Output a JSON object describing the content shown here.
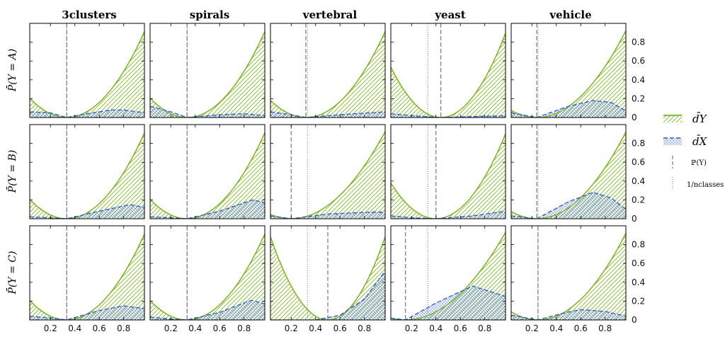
{
  "chart_data": {
    "type": "area",
    "columns": [
      "3clusters",
      "spirals",
      "vertebral",
      "yeast",
      "vehicle"
    ],
    "rows": [
      "P̄(Y = A)",
      "P̄(Y = B)",
      "P̄(Y = C)"
    ],
    "xlim": [
      0.03,
      0.97
    ],
    "x_ticks": [
      "0.2",
      "0.4",
      "0.6",
      "0.8"
    ],
    "ylim": [
      0,
      1.0
    ],
    "y_ticks": [
      "0",
      "0.2",
      "0.4",
      "0.6",
      "0.8"
    ],
    "legend": [
      {
        "label": "d̄Y",
        "style": "solid green line with diagonal hatch fill"
      },
      {
        "label": "d̄X",
        "style": "dashed blue line with dotted fill"
      },
      {
        "label": "ℙ(Y)",
        "style": "dashed gray vertical line"
      },
      {
        "label": "1/nclasses",
        "style": "dotted gray vertical line"
      }
    ],
    "colors": {
      "dY": "#7ab51d",
      "dX": "#2a56d6",
      "vline": "#777777"
    },
    "panels": [
      {
        "row": 0,
        "col": 0,
        "py": 0.333,
        "inv": 0.333,
        "dx_x": [
          0.03,
          0.2,
          0.333,
          0.5,
          0.7,
          0.8,
          0.97
        ],
        "dx_y": [
          0.06,
          0.05,
          0.0,
          0.04,
          0.08,
          0.08,
          0.05
        ]
      },
      {
        "row": 0,
        "col": 1,
        "py": 0.333,
        "inv": 0.333,
        "dx_x": [
          0.03,
          0.2,
          0.333,
          0.6,
          0.8,
          0.97
        ],
        "dx_y": [
          0.12,
          0.06,
          0.0,
          0.03,
          0.04,
          0.02
        ]
      },
      {
        "row": 0,
        "col": 2,
        "py": 0.32,
        "inv": 0.333,
        "dx_x": [
          0.03,
          0.2,
          0.32,
          0.6,
          0.97
        ],
        "dx_y": [
          0.06,
          0.03,
          0.0,
          0.03,
          0.06
        ]
      },
      {
        "row": 0,
        "col": 3,
        "py": 0.44,
        "inv": 0.333,
        "dx_x": [
          0.03,
          0.2,
          0.44,
          0.7,
          0.97
        ],
        "dx_y": [
          0.04,
          0.02,
          0.0,
          0.01,
          0.02
        ]
      },
      {
        "row": 0,
        "col": 4,
        "py": 0.24,
        "inv": 0.25,
        "dx_x": [
          0.03,
          0.24,
          0.5,
          0.7,
          0.85,
          0.97
        ],
        "dx_y": [
          0.05,
          0.0,
          0.12,
          0.18,
          0.16,
          0.07
        ]
      },
      {
        "row": 1,
        "col": 0,
        "py": 0.333,
        "inv": 0.333,
        "dx_x": [
          0.03,
          0.2,
          0.333,
          0.6,
          0.85,
          0.97
        ],
        "dx_y": [
          0.02,
          0.01,
          0.0,
          0.08,
          0.15,
          0.12
        ]
      },
      {
        "row": 1,
        "col": 1,
        "py": 0.333,
        "inv": 0.333,
        "dx_x": [
          0.03,
          0.2,
          0.333,
          0.6,
          0.87,
          0.97
        ],
        "dx_y": [
          0.02,
          0.01,
          0.0,
          0.08,
          0.2,
          0.17
        ]
      },
      {
        "row": 1,
        "col": 2,
        "py": 0.2,
        "inv": 0.333,
        "dx_x": [
          0.03,
          0.2,
          0.5,
          0.85,
          0.97
        ],
        "dx_y": [
          0.03,
          0.0,
          0.05,
          0.07,
          0.07
        ]
      },
      {
        "row": 1,
        "col": 3,
        "py": 0.4,
        "inv": 0.333,
        "dx_x": [
          0.03,
          0.2,
          0.4,
          0.7,
          0.97
        ],
        "dx_y": [
          0.03,
          0.01,
          0.0,
          0.03,
          0.08
        ]
      },
      {
        "row": 1,
        "col": 4,
        "py": 0.24,
        "inv": 0.25,
        "dx_x": [
          0.03,
          0.24,
          0.5,
          0.7,
          0.85,
          0.97
        ],
        "dx_y": [
          0.03,
          0.0,
          0.18,
          0.28,
          0.22,
          0.1
        ]
      },
      {
        "row": 2,
        "col": 0,
        "py": 0.333,
        "inv": 0.333,
        "dx_x": [
          0.03,
          0.2,
          0.333,
          0.6,
          0.8,
          0.97
        ],
        "dx_y": [
          0.04,
          0.02,
          0.0,
          0.1,
          0.15,
          0.12
        ]
      },
      {
        "row": 2,
        "col": 1,
        "py": 0.333,
        "inv": 0.333,
        "dx_x": [
          0.03,
          0.2,
          0.333,
          0.6,
          0.86,
          0.97
        ],
        "dx_y": [
          0.03,
          0.01,
          0.0,
          0.08,
          0.21,
          0.17
        ]
      },
      {
        "row": 2,
        "col": 2,
        "py": 0.5,
        "inv": 0.333,
        "dx_x": [
          0.03,
          0.4,
          0.6,
          0.8,
          0.97
        ],
        "dx_y": [
          0.0,
          0.0,
          0.05,
          0.22,
          0.52
        ]
      },
      {
        "row": 2,
        "col": 3,
        "py": 0.15,
        "inv": 0.333,
        "dx_x": [
          0.03,
          0.15,
          0.4,
          0.7,
          0.97
        ],
        "dx_y": [
          0.02,
          0.0,
          0.18,
          0.36,
          0.25
        ]
      },
      {
        "row": 2,
        "col": 4,
        "py": 0.25,
        "inv": 0.25,
        "dx_x": [
          0.03,
          0.25,
          0.45,
          0.6,
          0.8,
          0.97
        ],
        "dx_y": [
          0.05,
          0.0,
          0.07,
          0.11,
          0.09,
          0.04
        ]
      }
    ]
  }
}
